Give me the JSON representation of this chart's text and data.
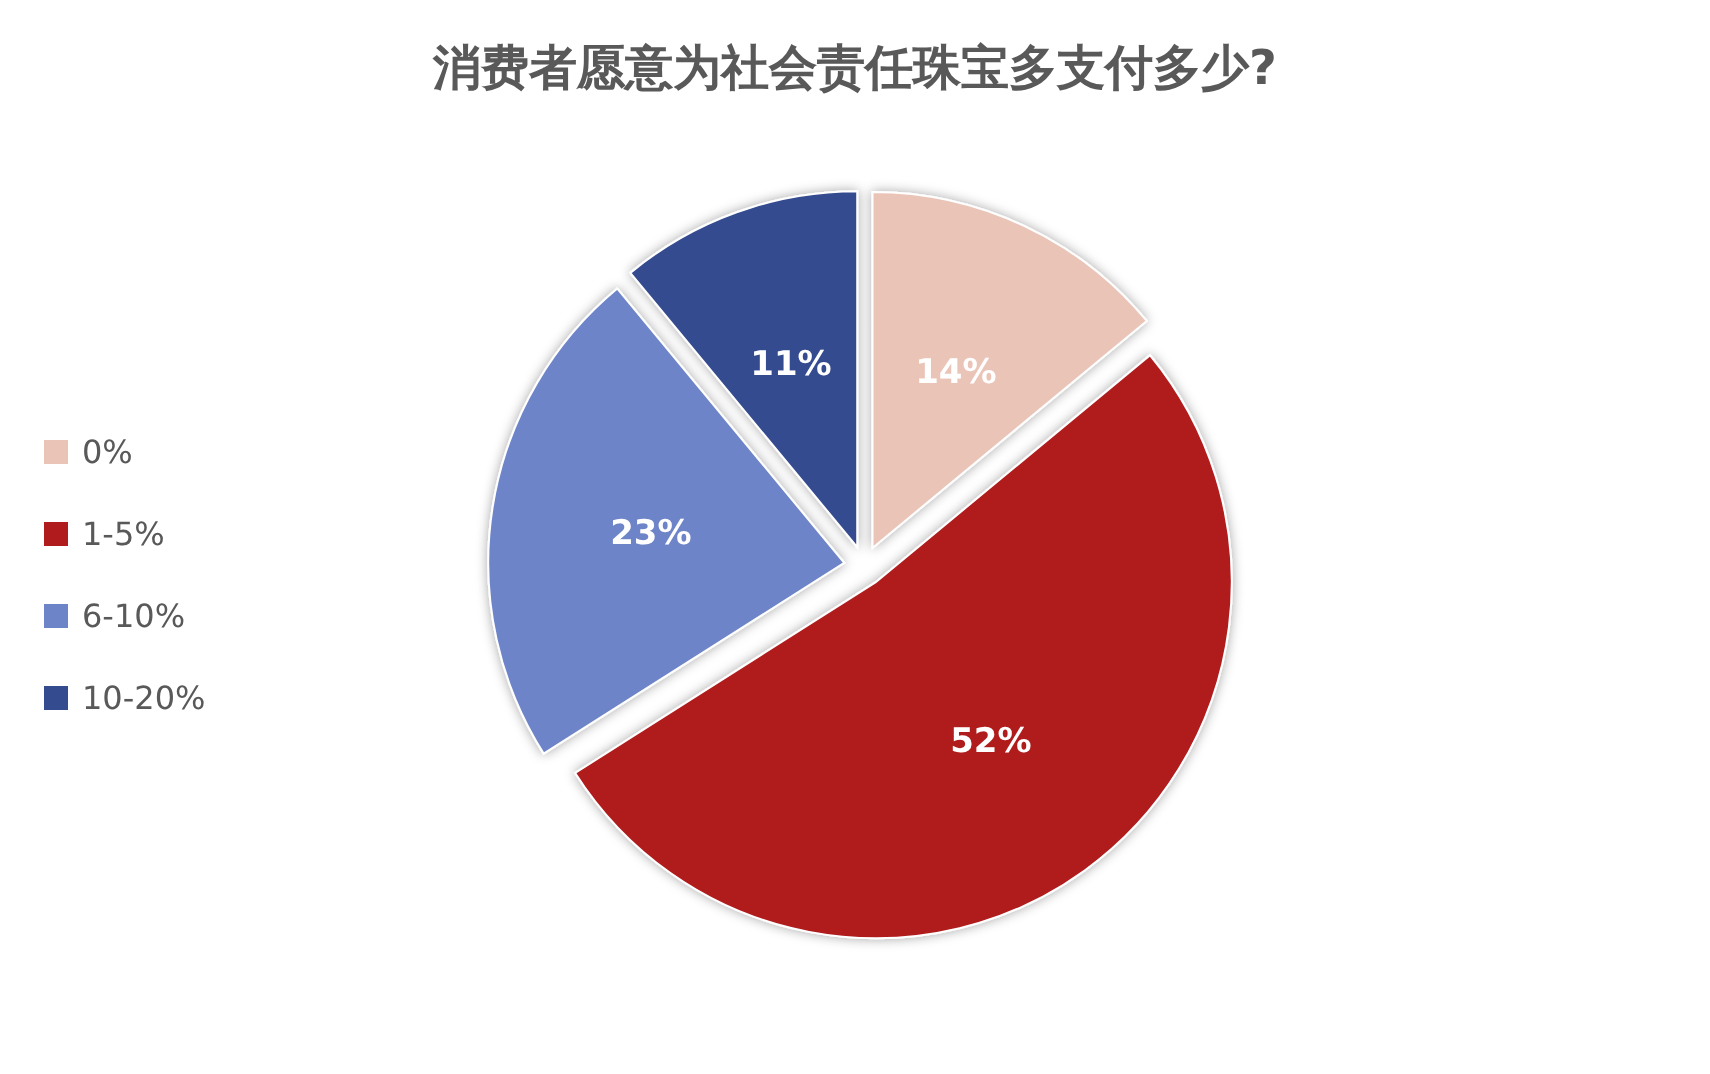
{
  "chart_data": {
    "type": "pie",
    "title": "消费者愿意为社会责任珠宝多支付多少?",
    "categories": [
      "0%",
      "1-5%",
      "6-10%",
      "10-20%"
    ],
    "values": [
      14,
      52,
      23,
      11
    ],
    "colors": [
      "#ebc4b8",
      "#b01c1e",
      "#6e84c8",
      "#344b8f"
    ],
    "value_labels": [
      "14%",
      "52%",
      "23%",
      "11%"
    ],
    "legend": "left"
  }
}
